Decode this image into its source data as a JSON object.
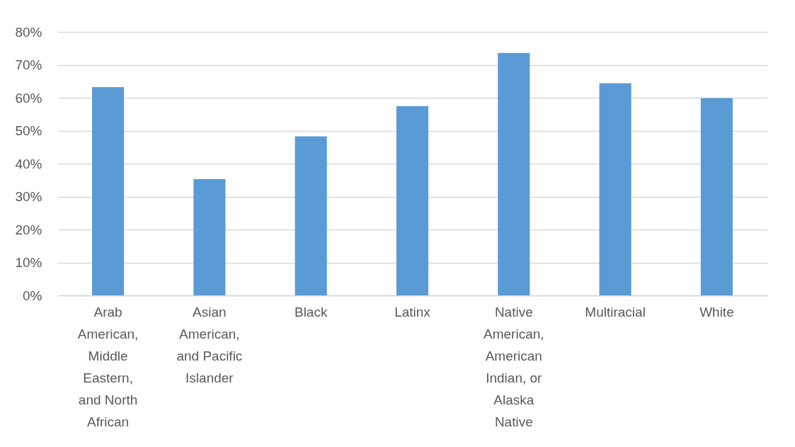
{
  "chart_data": {
    "type": "bar",
    "categories": [
      "Arab American, Middle Eastern, and North African",
      "Asian American, and Pacific Islander",
      "Black",
      "Latinx",
      "Native American, American Indian, or Alaska Native",
      "Multiracial",
      "White"
    ],
    "values": [
      63.2,
      35.3,
      48.3,
      57.5,
      73.6,
      64.4,
      59.9
    ],
    "color": "#5b9bd5",
    "ylim": [
      0,
      80
    ],
    "yticks": [
      {
        "value": 0,
        "label": "0%"
      },
      {
        "value": 10,
        "label": "10%"
      },
      {
        "value": 20,
        "label": "20%"
      },
      {
        "value": 30,
        "label": "30%"
      },
      {
        "value": 40,
        "label": "40%"
      },
      {
        "value": 50,
        "label": "50%"
      },
      {
        "value": 60,
        "label": "60%"
      },
      {
        "value": 70,
        "label": "70%"
      },
      {
        "value": 80,
        "label": "80%"
      }
    ],
    "grid": "y"
  }
}
